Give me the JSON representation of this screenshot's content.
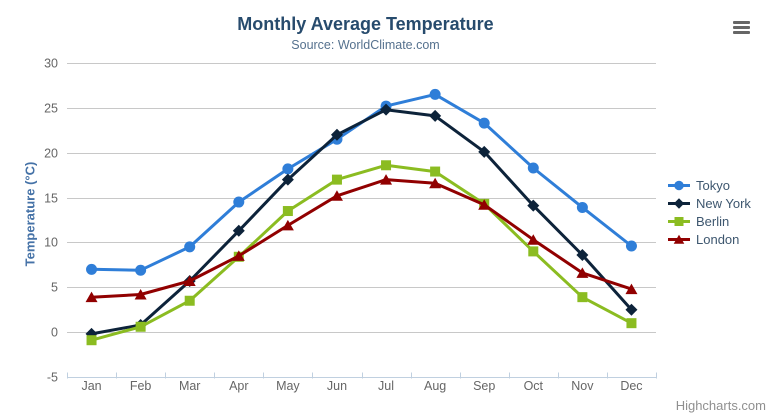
{
  "chart": {
    "title": "Monthly Average Temperature",
    "subtitle": "Source: WorldClimate.com",
    "credits": "Highcharts.com",
    "menu_icon": "hamburger-menu"
  },
  "colors": {
    "title": "#274b6d",
    "subtitle": "#55718e",
    "axis_title": "#4572A7",
    "axis_labels": "#666666",
    "gridline": "#C8C8C8",
    "axis_line": "#C0D0E0",
    "credits": "#909090",
    "menu_icon": "#666666",
    "background": "#ffffff"
  },
  "chart_data": {
    "type": "line",
    "title": "Monthly Average Temperature",
    "subtitle": "Source: WorldClimate.com",
    "categories": [
      "Jan",
      "Feb",
      "Mar",
      "Apr",
      "May",
      "Jun",
      "Jul",
      "Aug",
      "Sep",
      "Oct",
      "Nov",
      "Dec"
    ],
    "xlabel": "",
    "ylabel": "Temperature (°C)",
    "ylim": [
      -5,
      30
    ],
    "ytick_step": 5,
    "grid": true,
    "legend_position": "right",
    "series": [
      {
        "name": "Tokyo",
        "color": "#2f7ed8",
        "marker": "circle",
        "values": [
          7.0,
          6.9,
          9.5,
          14.5,
          18.2,
          21.5,
          25.2,
          26.5,
          23.3,
          18.3,
          13.9,
          9.6
        ]
      },
      {
        "name": "New York",
        "color": "#0d233a",
        "marker": "diamond",
        "values": [
          -0.2,
          0.8,
          5.7,
          11.3,
          17.0,
          22.0,
          24.8,
          24.1,
          20.1,
          14.1,
          8.6,
          2.5
        ]
      },
      {
        "name": "Berlin",
        "color": "#8bbc21",
        "marker": "square",
        "values": [
          -0.9,
          0.6,
          3.5,
          8.4,
          13.5,
          17.0,
          18.6,
          17.9,
          14.3,
          9.0,
          3.9,
          1.0
        ]
      },
      {
        "name": "London",
        "color": "#910000",
        "marker": "triangle",
        "values": [
          3.9,
          4.2,
          5.7,
          8.5,
          11.9,
          15.2,
          17.0,
          16.6,
          14.2,
          10.3,
          6.6,
          4.8
        ]
      }
    ]
  }
}
